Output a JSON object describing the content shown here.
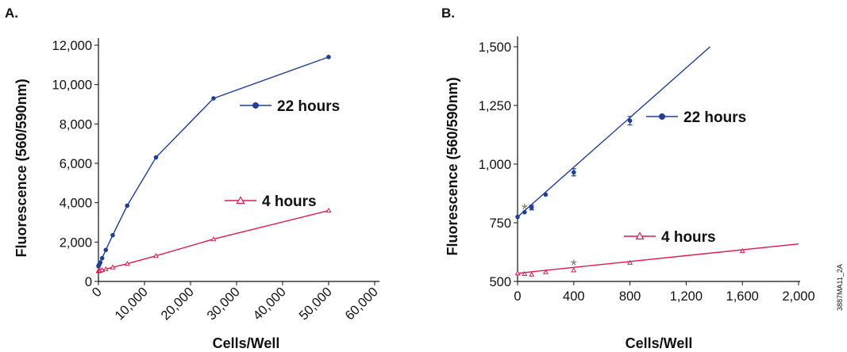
{
  "figure_code": "3887MA11_2A",
  "colors": {
    "blue": "#1f3f99",
    "red": "#e0194f",
    "axis": "#111111",
    "asterisk": "#777777"
  },
  "chart_data": [
    {
      "panel": "A.",
      "type": "line",
      "xlabel": "Cells/Well",
      "ylabel": "Fluorescence (560/590nm)",
      "xlim": [
        0,
        60000
      ],
      "ylim": [
        0,
        12000
      ],
      "xticks": [
        0,
        10000,
        20000,
        30000,
        40000,
        50000,
        60000
      ],
      "xtick_labels": [
        "0",
        "10,000",
        "20,000",
        "30,000",
        "40,000",
        "50,000",
        "60,000"
      ],
      "yticks": [
        0,
        2000,
        4000,
        6000,
        8000,
        10000,
        12000
      ],
      "ytick_labels": [
        "0",
        "2,000",
        "4,000",
        "6,000",
        "8,000",
        "10,000",
        "12,000"
      ],
      "grid": false,
      "series": [
        {
          "name": "22 hours",
          "marker": "filled-circle",
          "color": "#1f3f99",
          "x": [
            0,
            50,
            100,
            200,
            400,
            800,
            1600,
            3100,
            6250,
            12500,
            25000,
            50000
          ],
          "y": [
            780,
            800,
            820,
            870,
            960,
            1180,
            1600,
            2350,
            3850,
            6300,
            9300,
            11400
          ]
        },
        {
          "name": "4 hours",
          "marker": "open-triangle",
          "color": "#e0194f",
          "x": [
            0,
            50,
            100,
            200,
            400,
            800,
            1600,
            3100,
            6250,
            12500,
            25000,
            50000
          ],
          "y": [
            535,
            530,
            530,
            540,
            550,
            580,
            630,
            720,
            900,
            1300,
            2150,
            3600
          ]
        }
      ],
      "legend": [
        {
          "label": "22 hours",
          "series": 0
        },
        {
          "label": "4 hours",
          "series": 1
        }
      ]
    },
    {
      "panel": "B.",
      "type": "line",
      "xlabel": "Cells/Well",
      "ylabel": "Fluorescence (560/590nm)",
      "xlim": [
        0,
        2000
      ],
      "ylim": [
        500,
        1500
      ],
      "xticks": [
        0,
        400,
        800,
        1200,
        1600,
        2000
      ],
      "xtick_labels": [
        "0",
        "400",
        "800",
        "1,200",
        "1,600",
        "2,000"
      ],
      "yticks": [
        500,
        750,
        1000,
        1250,
        1500
      ],
      "ytick_labels": [
        "500",
        "750",
        "1,000",
        "1,250",
        "1,500"
      ],
      "grid": false,
      "series": [
        {
          "name": "22 hours",
          "marker": "filled-circle",
          "color": "#1f3f99",
          "x": [
            0,
            50,
            100,
            200,
            400,
            800
          ],
          "y": [
            775,
            795,
            815,
            870,
            965,
            1185
          ],
          "error": [
            0,
            0,
            10,
            0,
            15,
            18
          ],
          "fit_line": {
            "x": [
              0,
              1370
            ],
            "y": [
              775,
              1500
            ]
          }
        },
        {
          "name": "4 hours",
          "marker": "open-triangle",
          "color": "#e0194f",
          "x": [
            0,
            50,
            100,
            200,
            400,
            800,
            1600
          ],
          "y": [
            535,
            532,
            530,
            540,
            548,
            580,
            630
          ],
          "fit_line": {
            "x": [
              0,
              2000
            ],
            "y": [
              535,
              660
            ]
          }
        }
      ],
      "annotations": [
        {
          "text": "*",
          "x": 50,
          "y": 810
        },
        {
          "text": "*",
          "x": 400,
          "y": 573
        }
      ],
      "legend": [
        {
          "label": "22 hours",
          "series": 0
        },
        {
          "label": "4 hours",
          "series": 1
        }
      ]
    }
  ]
}
